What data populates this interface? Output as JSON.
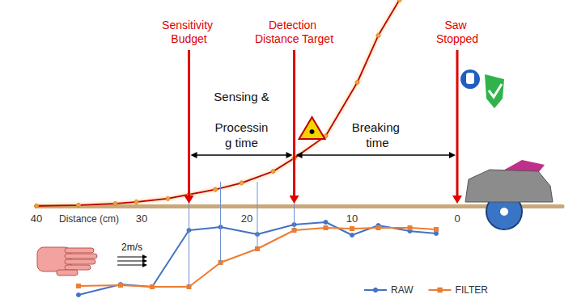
{
  "chart_data": [
    {
      "type": "line",
      "x_label": "Distance (cm)",
      "xlim": [
        40,
        -10
      ],
      "xticks": [
        40,
        30,
        20,
        10,
        0
      ],
      "ylim": [
        0,
        250
      ],
      "tick_labels": "x",
      "grid": false,
      "color": "#c00000",
      "marker": "circle",
      "x": [
        40,
        36,
        32.5,
        30.5,
        27.5,
        25.5,
        23,
        20.5,
        17.5,
        15.5,
        12.5,
        9.5,
        7.5,
        5.5
      ],
      "values": [
        0,
        1,
        3,
        5,
        9,
        14,
        20,
        28,
        42,
        58,
        85,
        150,
        207,
        250
      ],
      "annotations": [
        {
          "text": "Sensitivity Budget",
          "x": 25.5
        },
        {
          "text": "Detection Distance Target",
          "x": 15.5
        },
        {
          "text": "Saw Stopped",
          "x": 0
        }
      ],
      "spans": [
        {
          "text": "Sensing & Processing time",
          "from": 25.5,
          "to": 15.5
        },
        {
          "text": "Breaking time",
          "from": 15.5,
          "to": 0
        }
      ],
      "approach_label": "2m/s"
    },
    {
      "type": "line",
      "xlim": [
        40,
        -10
      ],
      "ylim": [
        0,
        105
      ],
      "tick_labels": false,
      "grid": false,
      "legend": "bottom right",
      "x": [
        36,
        32,
        29,
        25.5,
        22.5,
        19,
        15.5,
        12.5,
        10,
        7.5,
        4.5,
        2
      ],
      "series": [
        {
          "name": "RAW",
          "color": "#4472c4",
          "marker": "circle",
          "values": [
            5,
            18,
            15,
            85,
            89,
            80,
            92,
            95,
            79,
            91,
            84,
            81
          ]
        },
        {
          "name": "FILTER",
          "color": "#ed7d31",
          "marker": "square",
          "values": [
            16,
            17,
            15,
            15,
            45,
            62,
            85,
            88,
            87,
            88,
            88,
            86
          ]
        }
      ]
    }
  ]
}
